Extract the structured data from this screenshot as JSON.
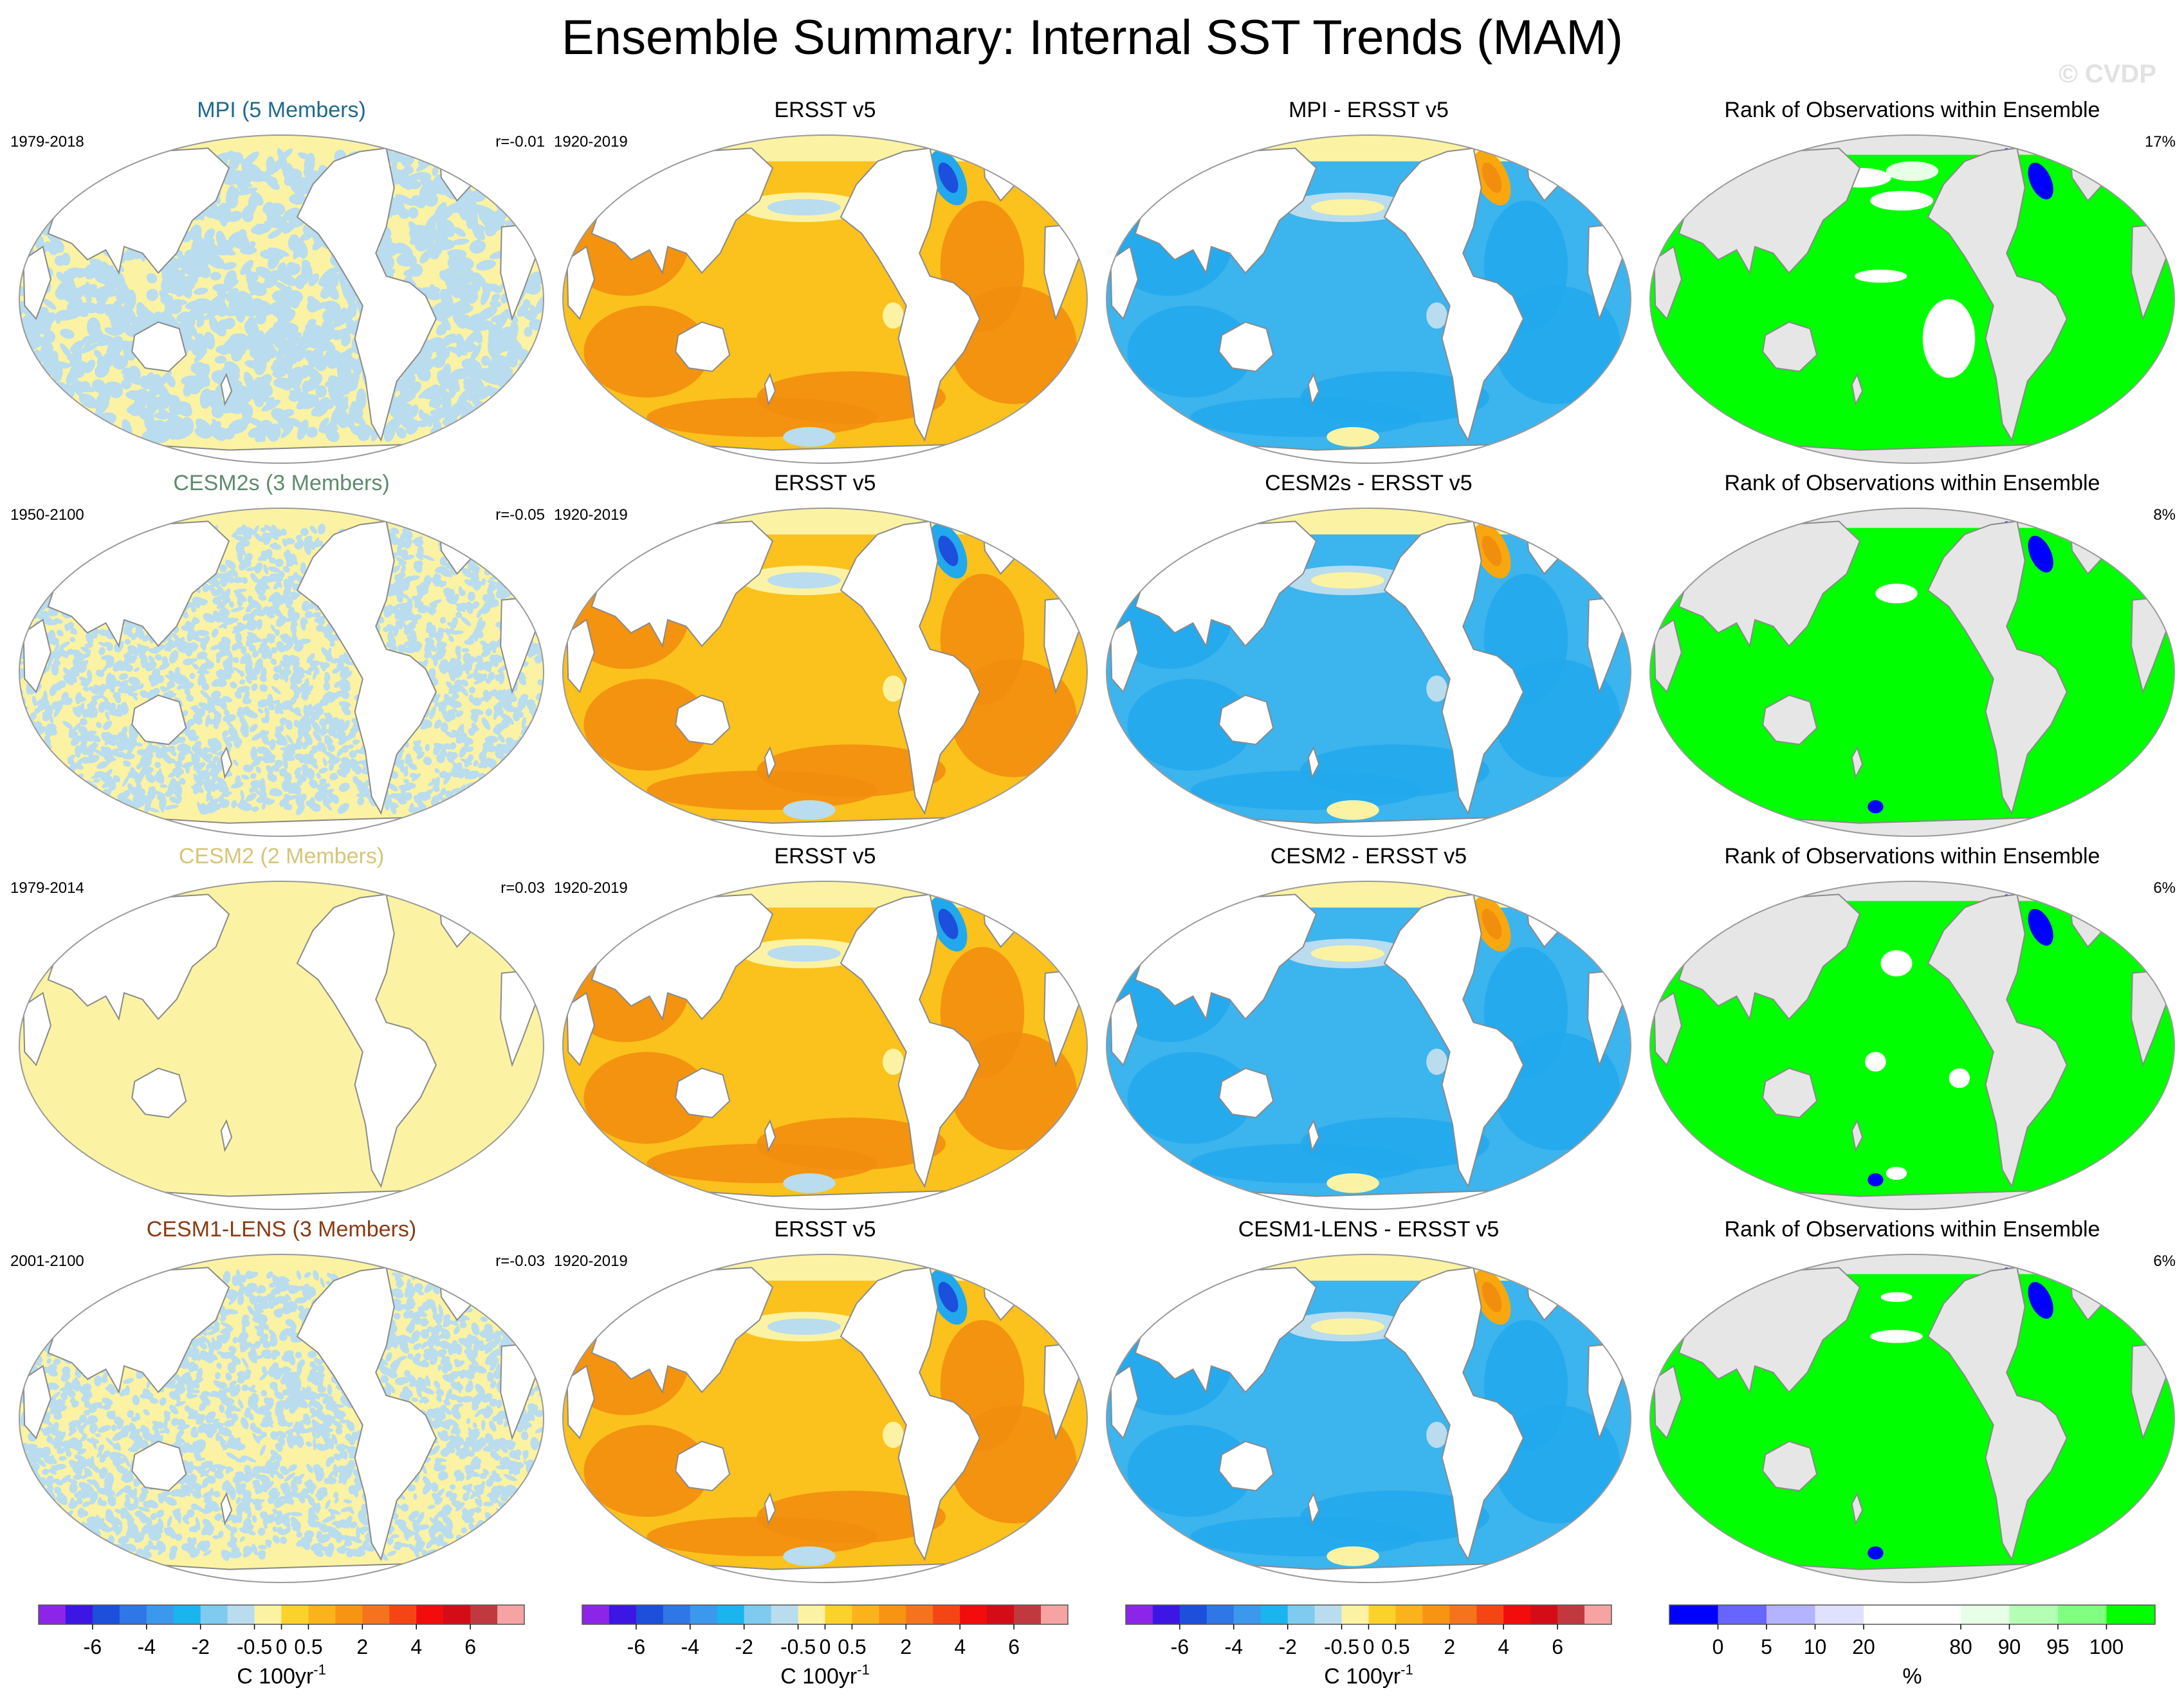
{
  "title": "Ensemble Summary: Internal SST Trends (MAM)",
  "watermark": "© CVDP",
  "colors": {
    "land": "#ffffff",
    "land_rank": "#e6e6e6",
    "coast": "#8a8a8a",
    "yellow": "#fbf3a3",
    "lightblue": "#b9dcee",
    "orange": "#f9a70f",
    "orange_light": "#fbc11c",
    "orange_dark": "#f28e0e",
    "blue": "#22a8ec",
    "blue_light": "#7cc8ef",
    "blue_mid": "#3cb4ee",
    "green": "#00ff00",
    "rank_blue": "#0000ff",
    "rank_white": "#ffffff",
    "rank_palegreen": "#e6ffe6"
  },
  "rows": [
    {
      "model_title": "MPI (5 Members)",
      "model_color": "#1f6a8e",
      "model_period": "1979-2018",
      "r_value": "r=-0.01",
      "obs_title": "ERSST v5",
      "obs_period": "1920-2019",
      "diff_title": "MPI - ERSST v5",
      "rank_title": "Rank of Observations within Ensemble",
      "rank_pct": "17%",
      "pattern": "coarse"
    },
    {
      "model_title": "CESM2s (3 Members)",
      "model_color": "#5e8a6e",
      "model_period": "1950-2100",
      "r_value": "r=-0.05",
      "obs_title": "ERSST v5",
      "obs_period": "1920-2019",
      "diff_title": "CESM2s - ERSST v5",
      "rank_title": "Rank of Observations within Ensemble",
      "rank_pct": "8%",
      "pattern": "fine"
    },
    {
      "model_title": "CESM2 (2 Members)",
      "model_color": "#d6c57a",
      "model_period": "1979-2014",
      "r_value": "r=0.03",
      "obs_title": "ERSST v5",
      "obs_period": "1920-2019",
      "diff_title": "CESM2 - ERSST v5",
      "rank_title": "Rank of Observations within Ensemble",
      "rank_pct": "6%",
      "pattern": "flat"
    },
    {
      "model_title": "CESM1-LENS (3 Members)",
      "model_color": "#8b3a12",
      "model_period": "2001-2100",
      "r_value": "r=-0.03",
      "obs_title": "ERSST v5",
      "obs_period": "1920-2019",
      "diff_title": "CESM1-LENS - ERSST v5",
      "rank_title": "Rank of Observations within Ensemble",
      "rank_pct": "6%",
      "pattern": "fine"
    }
  ],
  "colorbar_trend": {
    "unit_prefix": "C 100yr",
    "unit_sup": "-1",
    "colors": [
      "#8c25e8",
      "#3b16e4",
      "#1b4fdc",
      "#2f76e6",
      "#3c98ec",
      "#1ab4ee",
      "#7fcbef",
      "#b9dcee",
      "#fbf3a3",
      "#fbd22a",
      "#fbb31c",
      "#f79412",
      "#f6731d",
      "#f64515",
      "#f20c0c",
      "#d40c15",
      "#c1393e",
      "#f5a3a3"
    ],
    "labels": [
      {
        "text": "-6",
        "boundary": 2
      },
      {
        "text": "-4",
        "boundary": 4
      },
      {
        "text": "-2",
        "boundary": 6
      },
      {
        "text": "-0.5",
        "boundary": 8
      },
      {
        "text": "0",
        "boundary": 9
      },
      {
        "text": "0.5",
        "boundary": 10
      },
      {
        "text": "2",
        "boundary": 12
      },
      {
        "text": "4",
        "boundary": 14
      },
      {
        "text": "6",
        "boundary": 16
      }
    ]
  },
  "colorbar_rank": {
    "unit": "%",
    "colors": [
      "#0000ff",
      "#6666ff",
      "#b3b3ff",
      "#e0e0ff",
      "#ffffff",
      "#ffffff",
      "#e6ffe6",
      "#b3ffb3",
      "#80ff80",
      "#00ff00"
    ],
    "labels": [
      {
        "text": "0",
        "boundary": 1
      },
      {
        "text": "5",
        "boundary": 2
      },
      {
        "text": "10",
        "boundary": 3
      },
      {
        "text": "20",
        "boundary": 4
      },
      {
        "text": "80",
        "boundary": 6
      },
      {
        "text": "90",
        "boundary": 7
      },
      {
        "text": "95",
        "boundary": 8
      },
      {
        "text": "100",
        "boundary": 9
      }
    ]
  },
  "chart_data": {
    "type": "heatmap",
    "title": "Ensemble Summary: Internal SST Trends (MAM)",
    "panels_per_row": [
      "model internal trend",
      "ERSST v5 observed trend",
      "model minus ERSST v5 difference",
      "rank of observations within ensemble"
    ],
    "models": [
      "MPI (5 Members)",
      "CESM2s (3 Members)",
      "CESM2 (2 Members)",
      "CESM1-LENS (3 Members)"
    ],
    "model_periods": [
      "1979-2018",
      "1950-2100",
      "1979-2014",
      "2001-2100"
    ],
    "pattern_correlations": [
      -0.01,
      -0.05,
      0.03,
      -0.03
    ],
    "observation_period": "1920-2019",
    "rank_percent": [
      17,
      8,
      6,
      6
    ],
    "trend_contour_levels": [
      -6,
      -4,
      -2,
      -0.5,
      0,
      0.5,
      2,
      4,
      6
    ],
    "trend_units": "C 100yr-1",
    "rank_levels": [
      0,
      5,
      10,
      20,
      80,
      90,
      95,
      100
    ],
    "rank_units": "%"
  }
}
